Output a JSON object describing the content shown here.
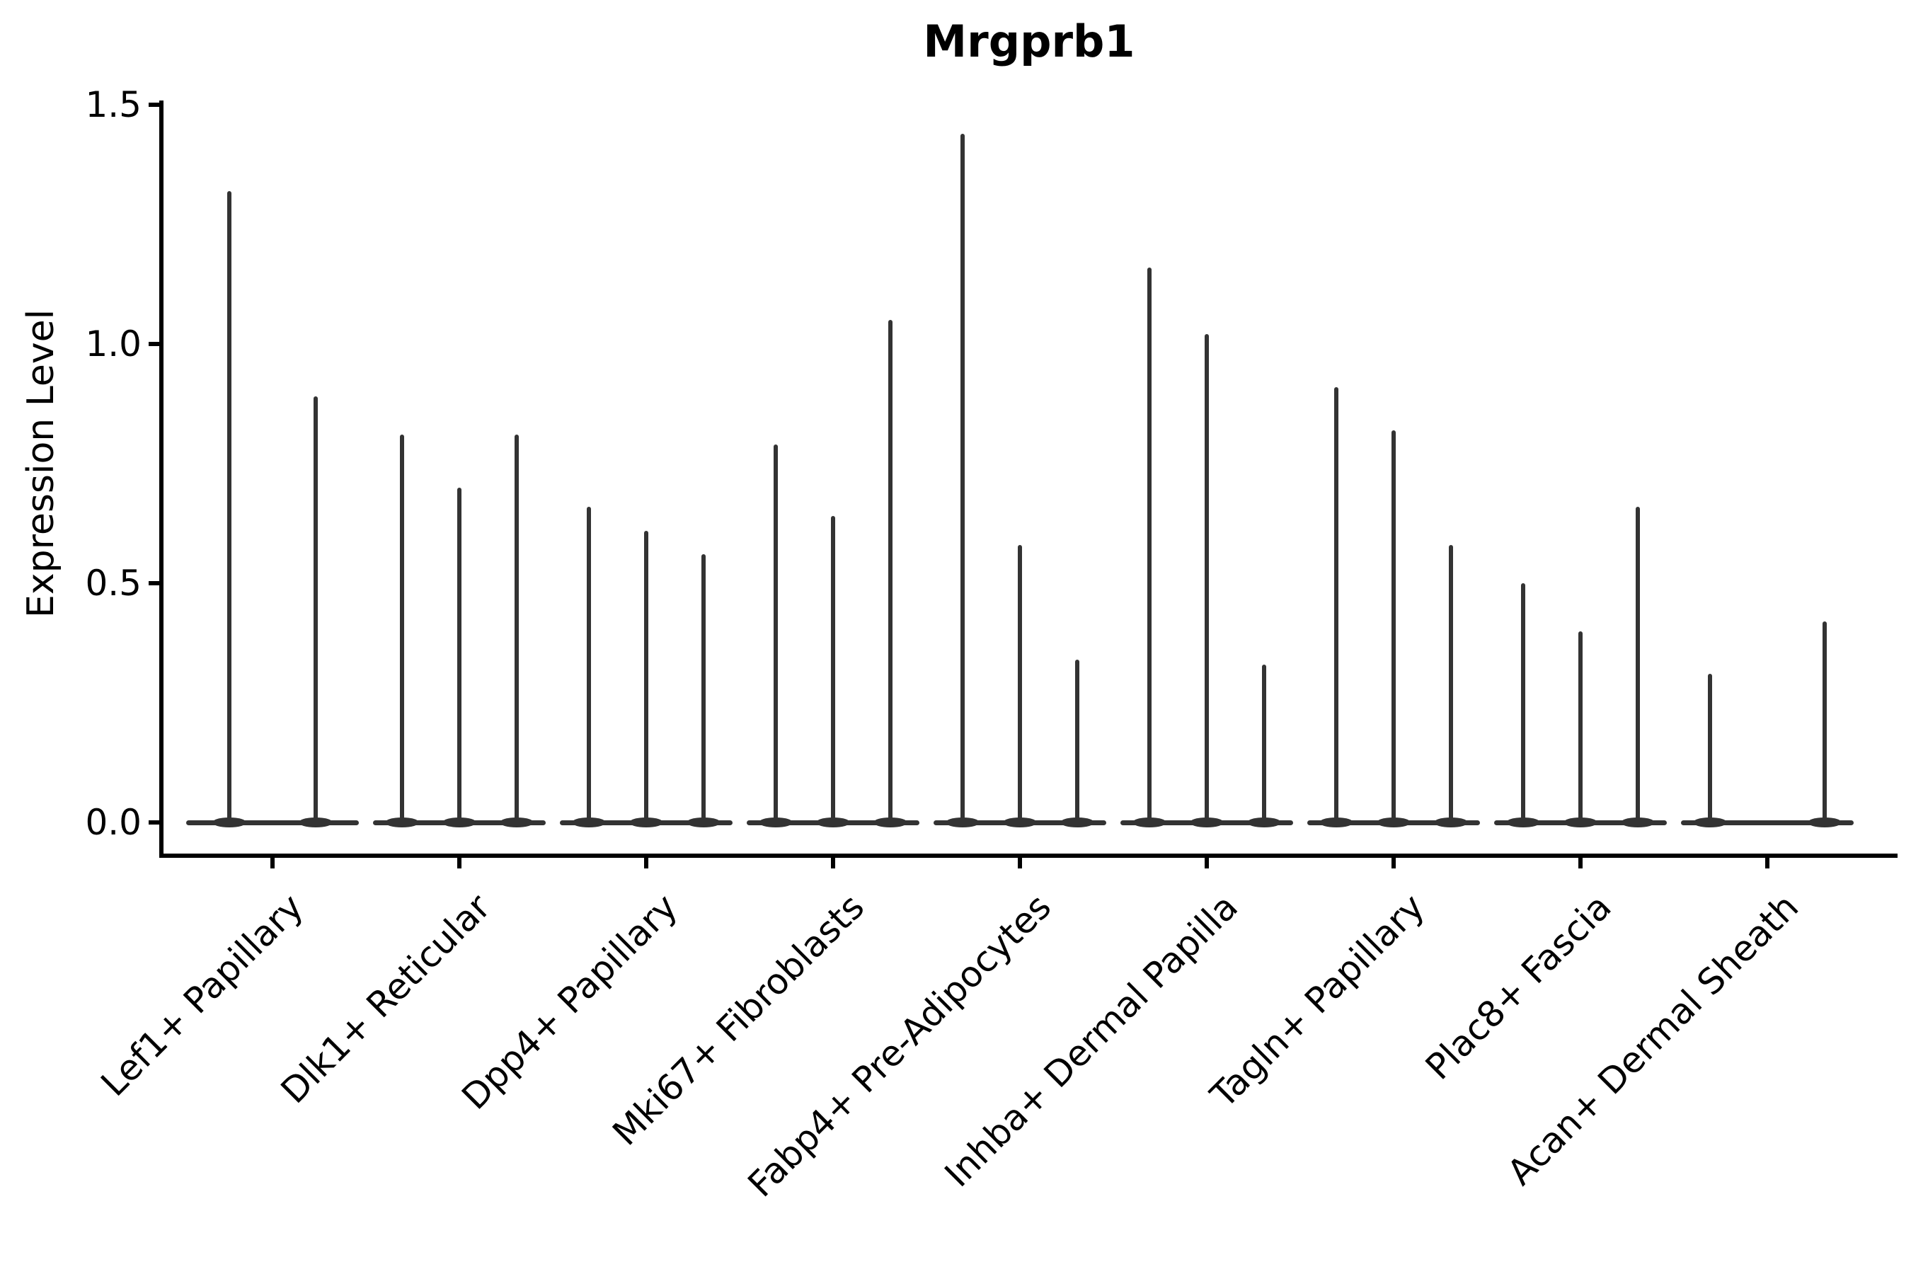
{
  "title": "Mrgprb1",
  "y_axis": {
    "label": "Expression Level",
    "tick_labels": [
      "0.0",
      "0.5",
      "1.0",
      "1.5"
    ]
  },
  "x_axis": {
    "categories": [
      "Lef1+ Papillary",
      "Dlk1+ Reticular",
      "Dpp4+ Papillary",
      "Mki67+ Fibroblasts",
      "Fabp4+ Pre-Adipocytes",
      "Inhba+ Dermal Papilla",
      "Tagln+ Papillary",
      "Plac8+ Fascia",
      "Acan+ Dermal Sheath"
    ]
  },
  "chart_data": {
    "type": "violin",
    "title": "Mrgprb1",
    "xlabel": "",
    "ylabel": "Expression Level",
    "ylim": [
      0,
      1.5
    ],
    "yticks": [
      0.0,
      0.5,
      1.0,
      1.5
    ],
    "grid": false,
    "legend": "none",
    "description": "Very thin violins: expression mass concentrated at 0 (flat horizontal base per category) with narrow spikes rising to each sub-violin maximum.",
    "categories": [
      "Lef1+ Papillary",
      "Dlk1+ Reticular",
      "Dpp4+ Papillary",
      "Mki67+ Fibroblasts",
      "Fabp4+ Pre-Adipocytes",
      "Inhba+ Dermal Papilla",
      "Tagln+ Papillary",
      "Plac8+ Fascia",
      "Acan+ Dermal Sheath"
    ],
    "groups": [
      {
        "category": "Lef1+ Papillary",
        "violins": [
          {
            "slot": 0.25,
            "peak": 1.32
          },
          {
            "slot": 0.75,
            "peak": 0.89
          }
        ]
      },
      {
        "category": "Dlk1+ Reticular",
        "violins": [
          {
            "slot": 0.167,
            "peak": 0.81
          },
          {
            "slot": 0.5,
            "peak": 0.7
          },
          {
            "slot": 0.833,
            "peak": 0.81
          }
        ]
      },
      {
        "category": "Dpp4+ Papillary",
        "violins": [
          {
            "slot": 0.167,
            "peak": 0.66
          },
          {
            "slot": 0.5,
            "peak": 0.61
          },
          {
            "slot": 0.833,
            "peak": 0.56
          }
        ]
      },
      {
        "category": "Mki67+ Fibroblasts",
        "violins": [
          {
            "slot": 0.167,
            "peak": 0.79
          },
          {
            "slot": 0.5,
            "peak": 0.64
          },
          {
            "slot": 0.833,
            "peak": 1.05
          }
        ]
      },
      {
        "category": "Fabp4+ Pre-Adipocytes",
        "violins": [
          {
            "slot": 0.167,
            "peak": 1.44
          },
          {
            "slot": 0.5,
            "peak": 0.58
          },
          {
            "slot": 0.833,
            "peak": 0.34
          }
        ]
      },
      {
        "category": "Inhba+ Dermal Papilla",
        "violins": [
          {
            "slot": 0.167,
            "peak": 1.16
          },
          {
            "slot": 0.5,
            "peak": 1.02
          },
          {
            "slot": 0.833,
            "peak": 0.33
          }
        ]
      },
      {
        "category": "Tagln+ Papillary",
        "violins": [
          {
            "slot": 0.167,
            "peak": 0.91
          },
          {
            "slot": 0.5,
            "peak": 0.82
          },
          {
            "slot": 0.833,
            "peak": 0.58
          }
        ]
      },
      {
        "category": "Plac8+ Fascia",
        "violins": [
          {
            "slot": 0.167,
            "peak": 0.5
          },
          {
            "slot": 0.5,
            "peak": 0.4
          },
          {
            "slot": 0.833,
            "peak": 0.66
          }
        ]
      },
      {
        "category": "Acan+ Dermal Sheath",
        "violins": [
          {
            "slot": 0.167,
            "peak": 0.31
          },
          {
            "slot": 0.833,
            "peak": 0.42
          }
        ]
      }
    ],
    "colors": {
      "violin": "#333333",
      "axis": "#000000",
      "text": "#000000",
      "background": "#ffffff"
    }
  }
}
